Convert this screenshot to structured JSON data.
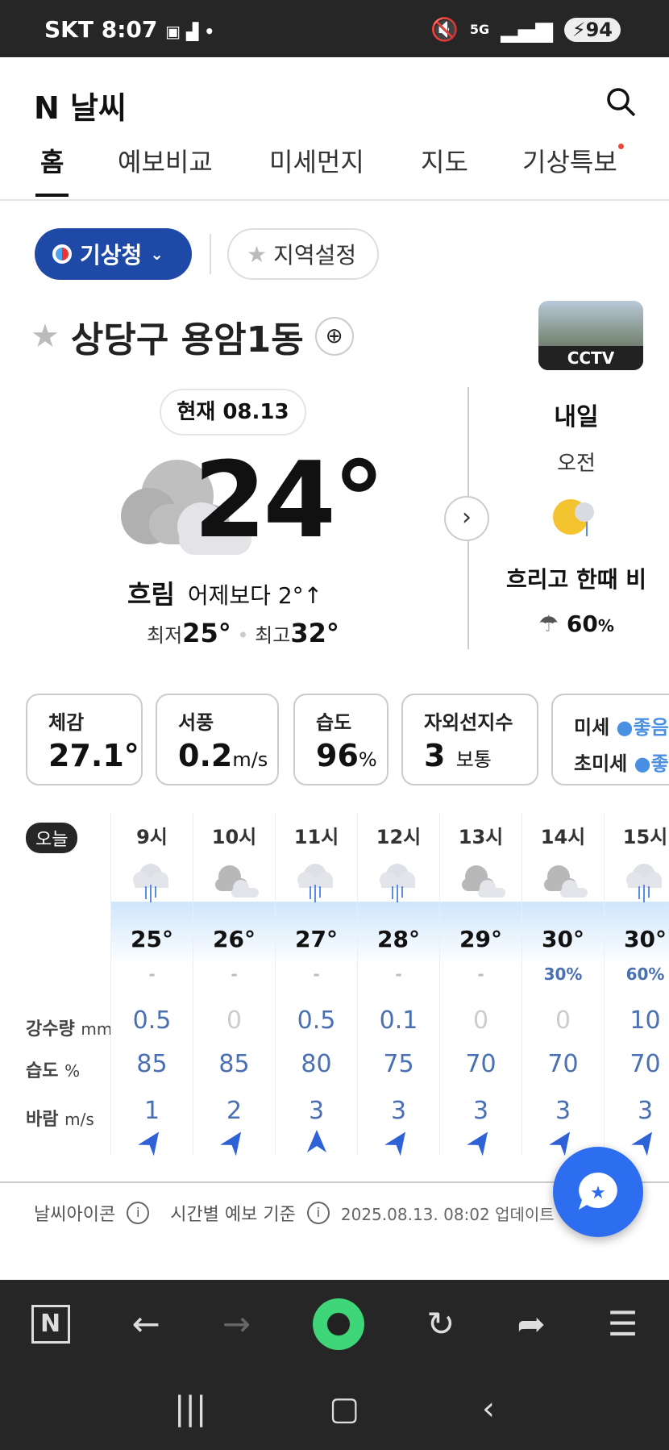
{
  "status": {
    "carrier": "SKT",
    "time": "8:07",
    "network": "5G",
    "battery": "94"
  },
  "header": {
    "logo": "N 날씨",
    "tabs": [
      "홈",
      "예보비교",
      "미세먼지",
      "지도",
      "기상특보"
    ],
    "active_tab": 0
  },
  "source_button": "기상청",
  "region_button": "지역설정",
  "location": "상당구 용암1동",
  "cctv_label": "CCTV",
  "current": {
    "date_label": "현재 08.13",
    "temp": "24°",
    "condition": "흐림",
    "compare": "어제보다 2°↑",
    "min_label": "최저",
    "min": "25°",
    "max_label": "최고",
    "max": "32°"
  },
  "tomorrow": {
    "title": "내일",
    "period": "오전",
    "condition": "흐리고 한때 비",
    "rain_prob": "60",
    "rain_unit": "%"
  },
  "cards": [
    {
      "title": "체감",
      "value": "27.1°",
      "unit": ""
    },
    {
      "title": "서풍",
      "value": "0.2",
      "unit": "m/s"
    },
    {
      "title": "습도",
      "value": "96",
      "unit": "%"
    },
    {
      "title": "자외선지수",
      "value": "3",
      "unit": "보통"
    },
    {
      "title1": "미세",
      "value1": "좋음",
      "title2": "초미세",
      "value2": "좋음"
    }
  ],
  "hourly": {
    "today_label": "오늘",
    "precip_label": "강수량",
    "precip_unit": "mm",
    "humidity_label": "습도",
    "humidity_unit": "%",
    "wind_label": "바람",
    "wind_unit": "m/s",
    "hours": [
      {
        "time": "9시",
        "icon": "rain-cloud",
        "temp": "25°",
        "prob": "-",
        "precip": "0.5",
        "humidity": "85",
        "wind": "1",
        "wind_dir_deg": 35
      },
      {
        "time": "10시",
        "icon": "cloudy",
        "temp": "26°",
        "prob": "-",
        "precip": "0",
        "humidity": "85",
        "wind": "2",
        "wind_dir_deg": 35
      },
      {
        "time": "11시",
        "icon": "rain-cloud",
        "temp": "27°",
        "prob": "-",
        "precip": "0.5",
        "humidity": "80",
        "wind": "3",
        "wind_dir_deg": 0
      },
      {
        "time": "12시",
        "icon": "rain-cloud",
        "temp": "28°",
        "prob": "-",
        "precip": "0.1",
        "humidity": "75",
        "wind": "3",
        "wind_dir_deg": 35
      },
      {
        "time": "13시",
        "icon": "cloudy",
        "temp": "29°",
        "prob": "-",
        "precip": "0",
        "humidity": "70",
        "wind": "3",
        "wind_dir_deg": 35
      },
      {
        "time": "14시",
        "icon": "cloudy",
        "temp": "30°",
        "prob": "30%",
        "precip": "0",
        "humidity": "70",
        "wind": "3",
        "wind_dir_deg": 35
      },
      {
        "time": "15시",
        "icon": "rain-cloud",
        "temp": "30°",
        "prob": "60%",
        "precip": "10",
        "humidity": "70",
        "wind": "3",
        "wind_dir_deg": 35
      }
    ]
  },
  "footer": {
    "icon_link": "날씨아이콘",
    "basis_link": "시간별 예보 기준",
    "updated": "2025.08.13. 08:02 업데이트"
  },
  "colors": {
    "accent": "#1f49a6",
    "value_blue": "#4a6fb3",
    "fab": "#2d6ef0"
  }
}
